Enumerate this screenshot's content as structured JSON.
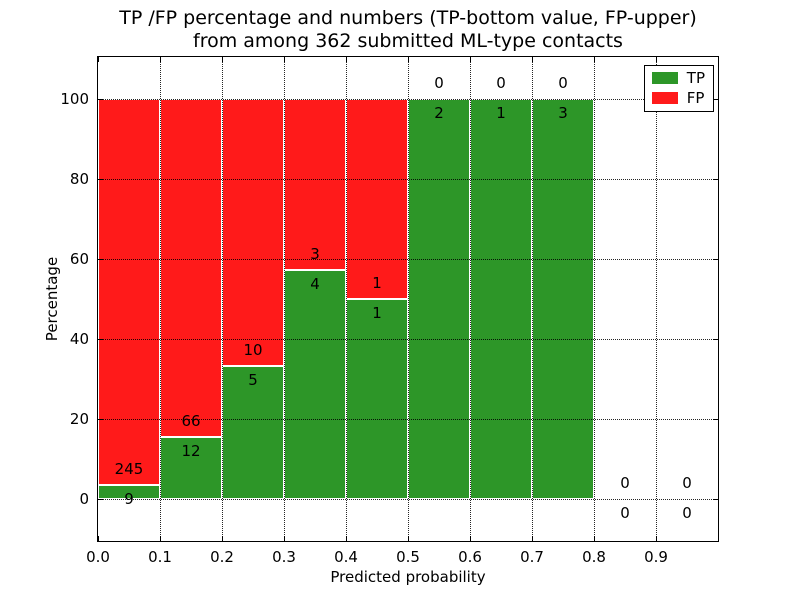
{
  "chart_data": {
    "type": "bar",
    "stacked": true,
    "normalized_to_percent": true,
    "title": "TP /FP percentage and numbers (TP-bottom value, FP-upper)\nfrom among 362 submitted ML-type contacts",
    "title_line1": "TP /FP percentage and numbers (TP-bottom value, FP-upper)",
    "title_line2": "from among 362 submitted ML-type contacts",
    "xlabel": "Predicted probability",
    "ylabel": "Percentage",
    "xlim": [
      0.0,
      1.0
    ],
    "ylim": [
      -10.5,
      110.5
    ],
    "bar_width": 0.1,
    "bin_starts": [
      0.0,
      0.1,
      0.2,
      0.3,
      0.4,
      0.5,
      0.6,
      0.7,
      0.8,
      0.9
    ],
    "x_tick_labels": [
      "0.0",
      "0.1",
      "0.2",
      "0.3",
      "0.4",
      "0.5",
      "0.6",
      "0.7",
      "0.8",
      "0.9"
    ],
    "y_tick_values": [
      0,
      20,
      40,
      60,
      80,
      100
    ],
    "grid_style": "dotted",
    "total_contacts": 362,
    "series": [
      {
        "name": "TP",
        "color": "#2d9628",
        "counts": [
          9,
          12,
          5,
          4,
          1,
          2,
          1,
          3,
          0,
          0
        ]
      },
      {
        "name": "FP",
        "color": "#ff1a1a",
        "counts": [
          245,
          66,
          10,
          3,
          1,
          0,
          0,
          0,
          0,
          0
        ]
      }
    ],
    "tp_percent_per_bin": [
      3.5,
      15.4,
      33.3,
      57.1,
      50.0,
      100.0,
      100.0,
      100.0,
      null,
      null
    ],
    "legend": {
      "position": "upper right",
      "entries": [
        {
          "label": "TP",
          "color": "#2d9628"
        },
        {
          "label": "FP",
          "color": "#ff1a1a"
        }
      ]
    }
  }
}
